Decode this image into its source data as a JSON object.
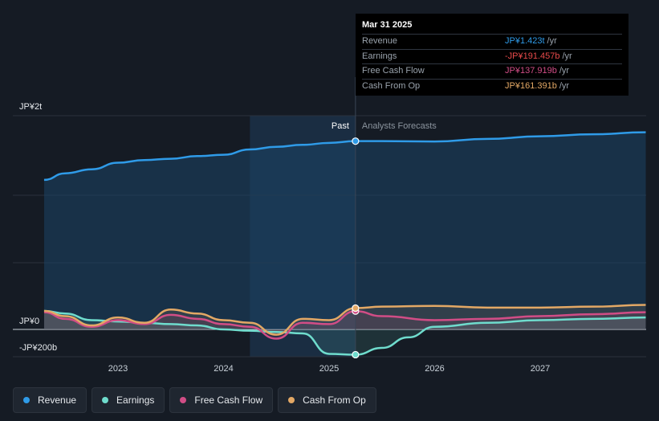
{
  "chart_data": {
    "type": "area",
    "currency_unit": "JPY billions",
    "y_tick_labels": [
      "JP¥2t",
      "JP¥0",
      "-JP¥200b"
    ],
    "y_ticks": [
      2000,
      0,
      -200
    ],
    "ylim": [
      -200,
      2000
    ],
    "xlim": [
      2022.3,
      2028.0
    ],
    "x_tick_labels": [
      "2023",
      "2024",
      "2025",
      "2026",
      "2027"
    ],
    "x_ticks": [
      2023,
      2024,
      2025,
      2026,
      2027
    ],
    "past_end": 2025.25,
    "past_shade_start": 2024.25,
    "past_label": "Past",
    "forecast_label": "Analysts Forecasts",
    "series": [
      {
        "name": "Revenue",
        "color": "#2f9be8",
        "x": [
          2022.3,
          2022.5,
          2022.75,
          2023.0,
          2023.25,
          2023.5,
          2023.75,
          2024.0,
          2024.25,
          2024.5,
          2024.75,
          2025.0,
          2025.25,
          2025.5,
          2026.0,
          2026.5,
          2027.0,
          2027.5,
          2028.0
        ],
        "y": [
          1130,
          1180,
          1210,
          1260,
          1280,
          1290,
          1310,
          1320,
          1360,
          1380,
          1395,
          1410,
          1423,
          1423,
          1420,
          1440,
          1460,
          1475,
          1490
        ]
      },
      {
        "name": "Earnings",
        "color": "#6fdccd",
        "x": [
          2022.3,
          2022.5,
          2022.75,
          2023.0,
          2023.25,
          2023.5,
          2023.75,
          2024.0,
          2024.25,
          2024.5,
          2024.75,
          2025.0,
          2025.25,
          2025.5,
          2025.75,
          2026.0,
          2026.5,
          2027.0,
          2027.5,
          2028.0
        ],
        "y": [
          140,
          120,
          70,
          60,
          50,
          40,
          30,
          0,
          -10,
          -20,
          -30,
          -185,
          -191,
          -140,
          -60,
          20,
          50,
          70,
          80,
          90
        ]
      },
      {
        "name": "Free Cash Flow",
        "color": "#d14d86",
        "x": [
          2022.3,
          2022.5,
          2022.75,
          2023.0,
          2023.25,
          2023.5,
          2023.75,
          2024.0,
          2024.25,
          2024.5,
          2024.75,
          2025.0,
          2025.25,
          2025.5,
          2026.0,
          2026.5,
          2027.0,
          2027.5,
          2028.0
        ],
        "y": [
          130,
          80,
          20,
          70,
          40,
          110,
          80,
          40,
          20,
          -70,
          50,
          40,
          138,
          100,
          70,
          80,
          100,
          115,
          130
        ]
      },
      {
        "name": "Cash From Op",
        "color": "#e3a865",
        "x": [
          2022.3,
          2022.5,
          2022.75,
          2023.0,
          2023.25,
          2023.5,
          2023.75,
          2024.0,
          2024.25,
          2024.5,
          2024.75,
          2025.0,
          2025.25,
          2025.5,
          2026.0,
          2026.5,
          2027.0,
          2027.5,
          2028.0
        ],
        "y": [
          140,
          100,
          30,
          90,
          50,
          150,
          120,
          70,
          50,
          -40,
          80,
          70,
          161,
          172,
          178,
          165,
          165,
          172,
          185
        ]
      }
    ]
  },
  "tooltip": {
    "date": "Mar 31 2025",
    "rows": [
      {
        "label": "Revenue",
        "value": "JP¥1.423t",
        "unit": "/yr",
        "color": "#2f9be8"
      },
      {
        "label": "Earnings",
        "value": "-JP¥191.457b",
        "unit": "/yr",
        "color": "#e64a4a"
      },
      {
        "label": "Free Cash Flow",
        "value": "JP¥137.919b",
        "unit": "/yr",
        "color": "#d14d86"
      },
      {
        "label": "Cash From Op",
        "value": "JP¥161.391b",
        "unit": "/yr",
        "color": "#e3a865"
      }
    ]
  },
  "legend": [
    {
      "label": "Revenue",
      "color": "#2f9be8"
    },
    {
      "label": "Earnings",
      "color": "#6fdccd"
    },
    {
      "label": "Free Cash Flow",
      "color": "#d14d86"
    },
    {
      "label": "Cash From Op",
      "color": "#e3a865"
    }
  ]
}
